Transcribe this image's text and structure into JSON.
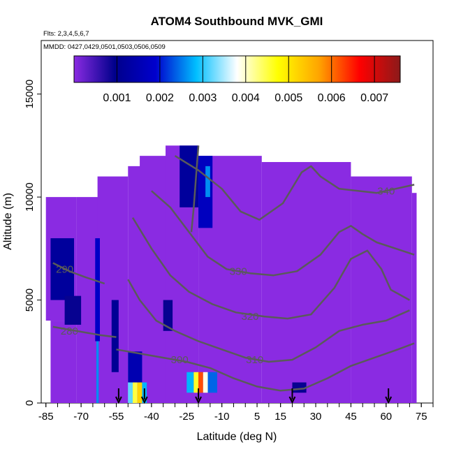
{
  "chart_data": {
    "type": "heatmap",
    "title": "ATOM4 Southbound MVK_GMI",
    "flights_note": "Flts: 2,3,4,5,6,7",
    "dates_note": "MMDD: 0427,0429,0501,0503,0506,0509",
    "xlabel": "Latitude (deg N)",
    "ylabel": "Altitude (m)",
    "xlim": [
      -87,
      80
    ],
    "ylim": [
      0,
      17600
    ],
    "x_ticks": [
      -85,
      -70,
      -55,
      -40,
      -25,
      -10,
      5,
      15,
      30,
      45,
      60,
      75
    ],
    "y_ticks": [
      0,
      5000,
      10000,
      15000
    ],
    "background_value_color": "#8a2be2",
    "colorbar": {
      "min": 0,
      "max": 0.0076,
      "ticks": [
        0.001,
        0.002,
        0.003,
        0.004,
        0.005,
        0.006,
        0.007
      ],
      "tick_labels": [
        "0.001",
        "0.002",
        "0.003",
        "0.004",
        "0.005",
        "0.006",
        "0.007"
      ],
      "colors": [
        "#8a2be2",
        "#00008b",
        "#0000cd",
        "#00bfff",
        "#ffffff",
        "#ffff00",
        "#ffa500",
        "#ff0000",
        "#8b1a1a"
      ]
    },
    "coverage": [
      {
        "lat_min": -72,
        "lat_max": -58,
        "alt_min": 0,
        "alt_max": 10000
      },
      {
        "lat_min": -63,
        "lat_max": -50,
        "alt_min": 0,
        "alt_max": 11000
      },
      {
        "lat_min": -50,
        "lat_max": -40,
        "alt_min": 0,
        "alt_max": 11500
      },
      {
        "lat_min": -45,
        "lat_max": -27,
        "alt_min": 0,
        "alt_max": 12000
      },
      {
        "lat_min": -34,
        "lat_max": -20,
        "alt_min": 0,
        "alt_max": 12500
      },
      {
        "lat_min": -20,
        "lat_max": 7,
        "alt_min": 0,
        "alt_max": 12000
      },
      {
        "lat_min": 7,
        "lat_max": 45,
        "alt_min": 0,
        "alt_max": 11700
      },
      {
        "lat_min": 45,
        "lat_max": 71,
        "alt_min": 0,
        "alt_max": 11000
      },
      {
        "lat_min": 71,
        "lat_max": 73,
        "alt_min": 0,
        "alt_max": 10200
      },
      {
        "lat_min": -85,
        "lat_max": -72,
        "alt_min": 4000,
        "alt_max": 10000
      },
      {
        "lat_min": -83,
        "lat_max": -72,
        "alt_min": 0,
        "alt_max": 4000
      }
    ],
    "high_value_cells": [
      {
        "lat_min": -83,
        "lat_max": -73,
        "alt_min": 5000,
        "alt_max": 8000,
        "value": 0.0012
      },
      {
        "lat_min": -77,
        "lat_max": -70,
        "alt_min": 3800,
        "alt_max": 5200,
        "value": 0.0009
      },
      {
        "lat_min": -64,
        "lat_max": -62,
        "alt_min": 3000,
        "alt_max": 8000,
        "value": 0.0018
      },
      {
        "lat_min": -63.5,
        "lat_max": -62.5,
        "alt_min": 0,
        "alt_max": 3000,
        "value": 0.0026
      },
      {
        "lat_min": -57,
        "lat_max": -54,
        "alt_min": 1500,
        "alt_max": 5000,
        "value": 0.0011
      },
      {
        "lat_min": -50,
        "lat_max": -44,
        "alt_min": 1000,
        "alt_max": 2500,
        "value": 0.0015
      },
      {
        "lat_min": -50,
        "lat_max": -48,
        "alt_min": 0,
        "alt_max": 1000,
        "value": 0.0032
      },
      {
        "lat_min": -48,
        "lat_max": -46,
        "alt_min": 0,
        "alt_max": 1000,
        "value": 0.0045
      },
      {
        "lat_min": -46,
        "lat_max": -44,
        "alt_min": 0,
        "alt_max": 1000,
        "value": 0.0052
      },
      {
        "lat_min": -44,
        "lat_max": -42,
        "alt_min": 0,
        "alt_max": 1000,
        "value": 0.0028
      },
      {
        "lat_min": -35,
        "lat_max": -31,
        "alt_min": 3500,
        "alt_max": 5000,
        "value": 0.0009
      },
      {
        "lat_min": -28,
        "lat_max": -20,
        "alt_min": 9500,
        "alt_max": 12500,
        "value": 0.0012
      },
      {
        "lat_min": -20,
        "lat_max": -14,
        "alt_min": 8500,
        "alt_max": 12000,
        "value": 0.0017
      },
      {
        "lat_min": -17,
        "lat_max": -15,
        "alt_min": 10000,
        "alt_max": 11500,
        "value": 0.0026
      },
      {
        "lat_min": -25,
        "lat_max": -22,
        "alt_min": 500,
        "alt_max": 1500,
        "value": 0.0028
      },
      {
        "lat_min": -22,
        "lat_max": -20,
        "alt_min": 500,
        "alt_max": 1500,
        "value": 0.0046
      },
      {
        "lat_min": -20,
        "lat_max": -18,
        "alt_min": 500,
        "alt_max": 1500,
        "value": 0.0062
      },
      {
        "lat_min": -18,
        "lat_max": -16,
        "alt_min": 500,
        "alt_max": 1500,
        "value": 0.0039
      },
      {
        "lat_min": -16,
        "lat_max": -12,
        "alt_min": 500,
        "alt_max": 1500,
        "value": 0.0024
      },
      {
        "lat_min": 20,
        "lat_max": 26,
        "alt_min": 500,
        "alt_max": 1000,
        "value": 0.0009
      }
    ],
    "theta_contours": [
      {
        "label": "280",
        "label_lat": -75,
        "label_alt": 3500,
        "points": [
          [
            -82,
            3700
          ],
          [
            -72,
            3500
          ],
          [
            -62,
            3300
          ],
          [
            -55,
            3200
          ]
        ]
      },
      {
        "label": "290",
        "label_lat": -77,
        "label_alt": 6500,
        "points": [
          [
            -82,
            6800
          ],
          [
            -75,
            6400
          ],
          [
            -68,
            6100
          ],
          [
            -60,
            5800
          ]
        ]
      },
      {
        "label": "300",
        "label_lat": -28,
        "label_alt": 2100,
        "points": [
          [
            -55,
            2600
          ],
          [
            -45,
            2400
          ],
          [
            -35,
            2200
          ],
          [
            -25,
            2000
          ],
          [
            -15,
            1700
          ],
          [
            -5,
            1200
          ],
          [
            5,
            800
          ],
          [
            15,
            600
          ],
          [
            25,
            700
          ],
          [
            35,
            1200
          ],
          [
            45,
            1800
          ],
          [
            55,
            2200
          ],
          [
            65,
            2600
          ],
          [
            72,
            2900
          ]
        ]
      },
      {
        "label": "310",
        "label_lat": 4,
        "label_alt": 2100,
        "points": [
          [
            -50,
            6000
          ],
          [
            -45,
            5000
          ],
          [
            -38,
            4000
          ],
          [
            -30,
            3500
          ],
          [
            -20,
            3000
          ],
          [
            -10,
            2600
          ],
          [
            0,
            2200
          ],
          [
            10,
            2000
          ],
          [
            20,
            2100
          ],
          [
            30,
            2700
          ],
          [
            40,
            3500
          ],
          [
            50,
            3800
          ],
          [
            60,
            4000
          ],
          [
            70,
            4500
          ]
        ]
      },
      {
        "label": "320",
        "label_lat": 2,
        "label_alt": 4200,
        "points": [
          [
            -48,
            9000
          ],
          [
            -40,
            7500
          ],
          [
            -32,
            6200
          ],
          [
            -24,
            5400
          ],
          [
            -14,
            4800
          ],
          [
            -4,
            4400
          ],
          [
            8,
            4200
          ],
          [
            18,
            4100
          ],
          [
            28,
            4300
          ],
          [
            38,
            5600
          ],
          [
            45,
            7000
          ],
          [
            52,
            7400
          ],
          [
            58,
            6500
          ],
          [
            62,
            5500
          ],
          [
            70,
            5000
          ]
        ]
      },
      {
        "label": "330",
        "label_lat": -3,
        "label_alt": 6400,
        "points": [
          [
            -40,
            10300
          ],
          [
            -32,
            9500
          ],
          [
            -24,
            8300
          ],
          [
            -16,
            7100
          ],
          [
            -8,
            6500
          ],
          [
            2,
            6300
          ],
          [
            12,
            6200
          ],
          [
            22,
            6400
          ],
          [
            32,
            7200
          ],
          [
            40,
            8300
          ],
          [
            45,
            8600
          ],
          [
            50,
            8200
          ],
          [
            56,
            7800
          ],
          [
            64,
            7500
          ],
          [
            72,
            7200
          ]
        ]
      },
      {
        "label": "340",
        "label_lat": 60,
        "label_alt": 10300,
        "points": [
          [
            -30,
            12000
          ],
          [
            -20,
            11300
          ],
          [
            -10,
            10400
          ],
          [
            -2,
            9300
          ],
          [
            6,
            8900
          ],
          [
            16,
            9700
          ],
          [
            24,
            11200
          ],
          [
            28,
            11500
          ],
          [
            32,
            11000
          ],
          [
            40,
            10400
          ],
          [
            48,
            10300
          ],
          [
            56,
            10200
          ],
          [
            64,
            10400
          ],
          [
            72,
            10600
          ]
        ]
      },
      {
        "label": "",
        "label_lat": 0,
        "label_alt": 0,
        "points": [
          [
            -20,
            12500
          ],
          [
            -21,
            11000
          ],
          [
            -22,
            9500
          ],
          [
            -23,
            8300
          ]
        ]
      }
    ],
    "sonde_arrows_lat": [
      -54,
      -43,
      -20,
      20,
      61
    ]
  }
}
